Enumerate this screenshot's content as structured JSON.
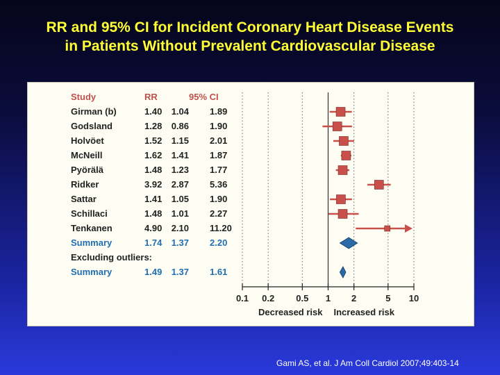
{
  "slide": {
    "title_line1": "RR and 95% CI for Incident Coronary Heart Disease Events",
    "title_line2": "in Patients Without Prevalent Cardiovascular Disease",
    "citation": "Gami AS, et al. J Am Coll Cardiol 2007;49:403-14"
  },
  "chart_data": {
    "type": "forest",
    "headers": {
      "study": "Study",
      "rr": "RR",
      "ci": "95% CI"
    },
    "xscale": "log",
    "xlim": [
      0.1,
      10
    ],
    "xticks": [
      "0.1",
      "0.2",
      "0.5",
      "1",
      "2",
      "5",
      "10"
    ],
    "xtick_values": [
      0.1,
      0.2,
      0.5,
      1,
      2,
      5,
      10
    ],
    "xlabel_left": "Decreased risk",
    "xlabel_right": "Increased risk",
    "rows": [
      {
        "kind": "study",
        "study": "Girman (b)",
        "rr": "1.40",
        "lo": "1.04",
        "hi": "1.89"
      },
      {
        "kind": "study",
        "study": "Godsland",
        "rr": "1.28",
        "lo": "0.86",
        "hi": "1.90"
      },
      {
        "kind": "study",
        "study": "Holvöet",
        "rr": "1.52",
        "lo": "1.15",
        "hi": "2.01"
      },
      {
        "kind": "study",
        "study": "McNeill",
        "rr": "1.62",
        "lo": "1.41",
        "hi": "1.87"
      },
      {
        "kind": "study",
        "study": "Pyörälä",
        "rr": "1.48",
        "lo": "1.23",
        "hi": "1.77"
      },
      {
        "kind": "study",
        "study": "Ridker",
        "rr": "3.92",
        "lo": "2.87",
        "hi": "5.36"
      },
      {
        "kind": "study",
        "study": "Sattar",
        "rr": "1.41",
        "lo": "1.05",
        "hi": "1.90"
      },
      {
        "kind": "study",
        "study": "Schillaci",
        "rr": "1.48",
        "lo": "1.01",
        "hi": "2.27"
      },
      {
        "kind": "study",
        "study": "Tenkanen",
        "rr": "4.90",
        "lo": "2.10",
        "hi": "11.20",
        "arrow": true
      },
      {
        "kind": "summary",
        "study": "Summary",
        "rr": "1.74",
        "lo": "1.37",
        "hi": "2.20"
      },
      {
        "kind": "heading",
        "study": "Excluding outliers:"
      },
      {
        "kind": "summary",
        "study": "Summary",
        "rr": "1.49",
        "lo": "1.37",
        "hi": "1.61"
      }
    ],
    "colors": {
      "header": "#c0504d",
      "study_text": "#222222",
      "summary_text": "#1f6fb2",
      "marker": "#c9504a",
      "diamond": "#2a6aa8",
      "gridline": "#666666"
    }
  }
}
